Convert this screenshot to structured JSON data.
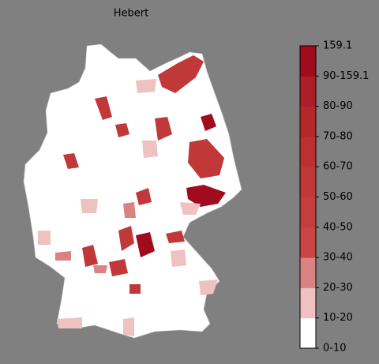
{
  "title": "Hebert",
  "colorbar": {
    "labels": [
      "0-10",
      "10-20",
      "20-30",
      "30-40",
      "40-50",
      "50-60",
      "60-70",
      "70-80",
      "80-90",
      "90-159.1",
      "159.1"
    ],
    "colors": [
      "#ffffff",
      "#efc1c1",
      "#db8282",
      "#c84646",
      "#c53e3e",
      "#c13838",
      "#bc3030",
      "#b62828",
      "#ae1e28",
      "#a00c1e"
    ]
  }
}
